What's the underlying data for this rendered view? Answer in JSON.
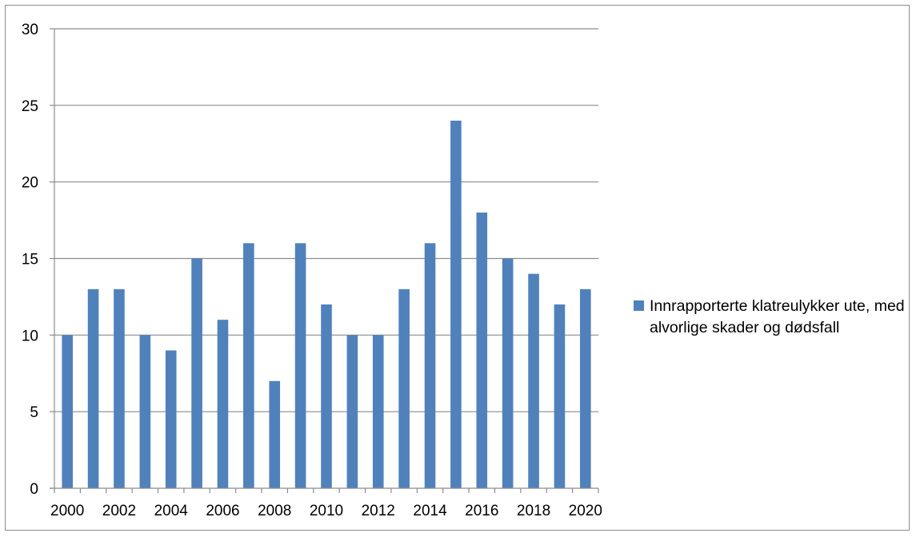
{
  "chart_data": {
    "type": "bar",
    "title": "",
    "xlabel": "",
    "ylabel": "",
    "ylim": [
      0,
      30
    ],
    "yticks": [
      0,
      5,
      10,
      15,
      20,
      25,
      30
    ],
    "categories": [
      "2000",
      "2001",
      "2002",
      "2003",
      "2004",
      "2005",
      "2006",
      "2007",
      "2008",
      "2009",
      "2010",
      "2011",
      "2012",
      "2013",
      "2014",
      "2015",
      "2016",
      "2017",
      "2018",
      "2019",
      "2020"
    ],
    "x_tick_labels": [
      "2000",
      "2002",
      "2004",
      "2006",
      "2008",
      "2010",
      "2012",
      "2014",
      "2016",
      "2018",
      "2020"
    ],
    "series": [
      {
        "name": "Innrapporterte klatreulykker ute, med alvorlige skader og dødsfall",
        "color": "#4f81bd",
        "values": [
          10,
          13,
          13,
          10,
          9,
          15,
          11,
          16,
          7,
          16,
          12,
          10,
          10,
          13,
          16,
          24,
          18,
          15,
          14,
          12,
          13
        ]
      }
    ],
    "grid": true,
    "legend_position": "right"
  }
}
